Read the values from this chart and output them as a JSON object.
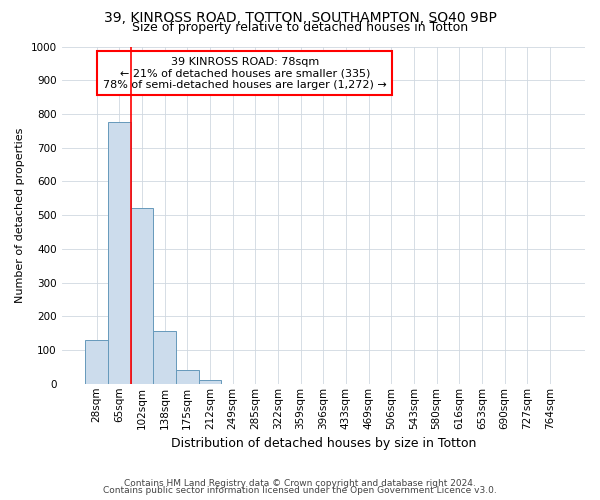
{
  "title_line1": "39, KINROSS ROAD, TOTTON, SOUTHAMPTON, SO40 9BP",
  "title_line2": "Size of property relative to detached houses in Totton",
  "xlabel": "Distribution of detached houses by size in Totton",
  "ylabel": "Number of detached properties",
  "footer_line1": "Contains HM Land Registry data © Crown copyright and database right 2024.",
  "footer_line2": "Contains public sector information licensed under the Open Government Licence v3.0.",
  "annotation_line1": "39 KINROSS ROAD: 78sqm",
  "annotation_line2": "← 21% of detached houses are smaller (335)",
  "annotation_line3": "78% of semi-detached houses are larger (1,272) →",
  "bar_labels": [
    "28sqm",
    "65sqm",
    "102sqm",
    "138sqm",
    "175sqm",
    "212sqm",
    "249sqm",
    "285sqm",
    "322sqm",
    "359sqm",
    "396sqm",
    "433sqm",
    "469sqm",
    "506sqm",
    "543sqm",
    "580sqm",
    "616sqm",
    "653sqm",
    "690sqm",
    "727sqm",
    "764sqm"
  ],
  "bar_values": [
    130,
    775,
    520,
    157,
    40,
    11,
    0,
    0,
    0,
    0,
    0,
    0,
    0,
    0,
    0,
    0,
    0,
    0,
    0,
    0,
    0
  ],
  "bar_color": "#ccdcec",
  "bar_edge_color": "#6699bb",
  "grid_color": "#d0d8e0",
  "vline_x": 1.5,
  "vline_color": "red",
  "ylim": [
    0,
    1000
  ],
  "yticks": [
    0,
    100,
    200,
    300,
    400,
    500,
    600,
    700,
    800,
    900,
    1000
  ],
  "annotation_box_color": "red",
  "background_color": "#ffffff",
  "title1_fontsize": 10,
  "title2_fontsize": 9,
  "ylabel_fontsize": 8,
  "xlabel_fontsize": 9,
  "tick_fontsize": 7.5,
  "footer_fontsize": 6.5,
  "annot_fontsize": 8
}
